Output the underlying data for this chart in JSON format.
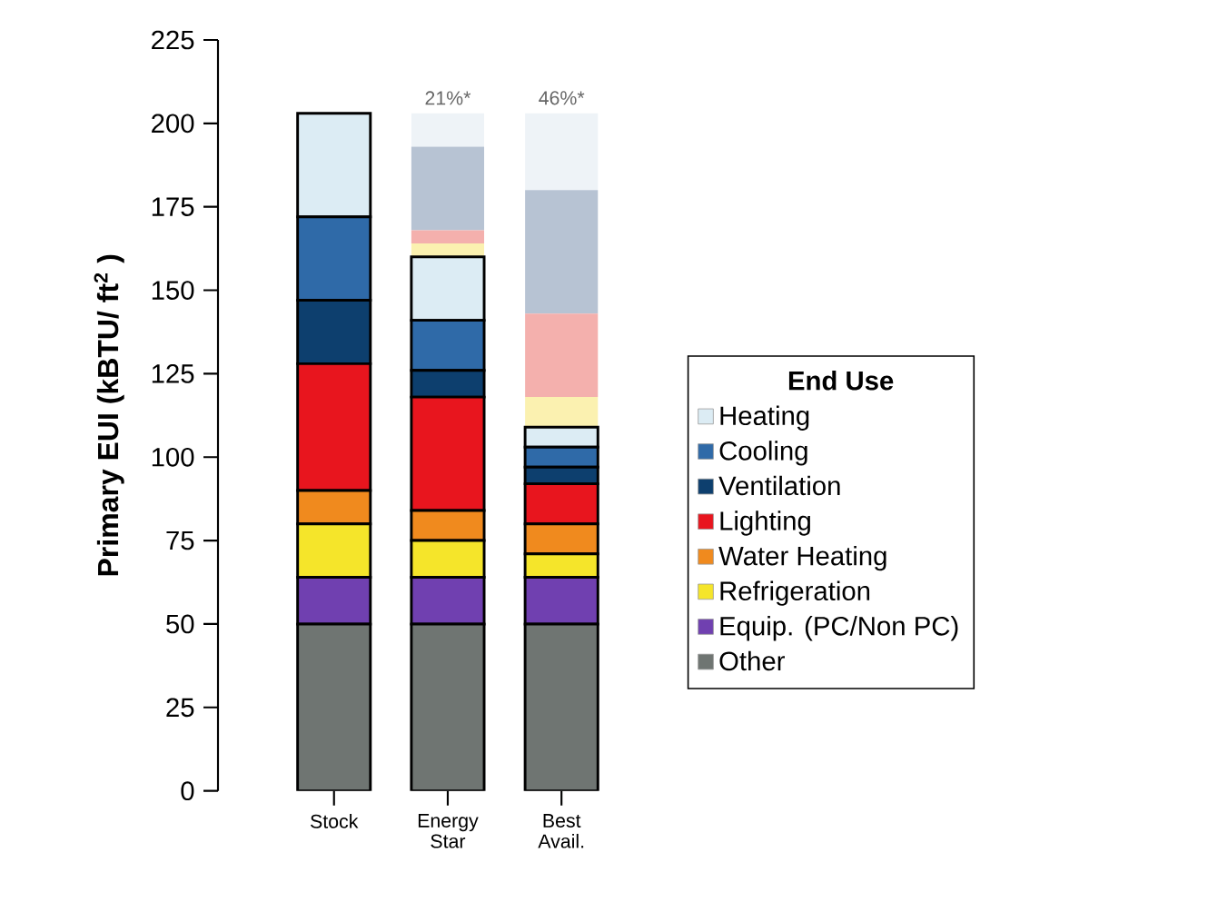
{
  "chart_data": {
    "type": "bar",
    "stacked": true,
    "ylabel": "Primary EUI (kBTU/ ft$^{2}$ )",
    "legend_title": "End Use",
    "legend": "right",
    "categories": [
      "Stock",
      "Energy Star",
      "Best Avail."
    ],
    "ylim": [
      0,
      225
    ],
    "yticks": [
      0,
      25,
      50,
      75,
      100,
      125,
      150,
      175,
      200,
      225
    ],
    "series": [
      {
        "name": "Other",
        "color": "#6f7572",
        "values": [
          50,
          50,
          50
        ]
      },
      {
        "name": "Equip. (PC/Non PC)",
        "color": "#7040b0",
        "values": [
          14,
          14,
          14
        ]
      },
      {
        "name": "Refrigeration",
        "color": "#f5e52a",
        "values": [
          16,
          11,
          7
        ]
      },
      {
        "name": "Water Heating",
        "color": "#f08a1e",
        "values": [
          10,
          9,
          9
        ]
      },
      {
        "name": "Lighting",
        "color": "#e8151e",
        "values": [
          38,
          34,
          12
        ]
      },
      {
        "name": "Ventilation",
        "color": "#0d3f6e",
        "values": [
          19,
          8,
          5
        ]
      },
      {
        "name": "Cooling",
        "color": "#2f6aa8",
        "values": [
          25,
          15,
          6
        ]
      },
      {
        "name": "Heating",
        "color": "#dcecf4",
        "values": [
          31,
          19,
          6
        ]
      },
      {
        "color": "#fbf1b0",
        "values": [
          0,
          4,
          9
        ]
      },
      {
        "color": "#f4b0ad",
        "values": [
          0,
          4,
          25
        ]
      },
      {
        "color": "#b7c3d3",
        "values": [
          0,
          25,
          37
        ]
      },
      {
        "color": "#eef3f7",
        "values": [
          0,
          10,
          23
        ]
      }
    ],
    "annotations": [
      "21%*",
      "46%*"
    ]
  }
}
